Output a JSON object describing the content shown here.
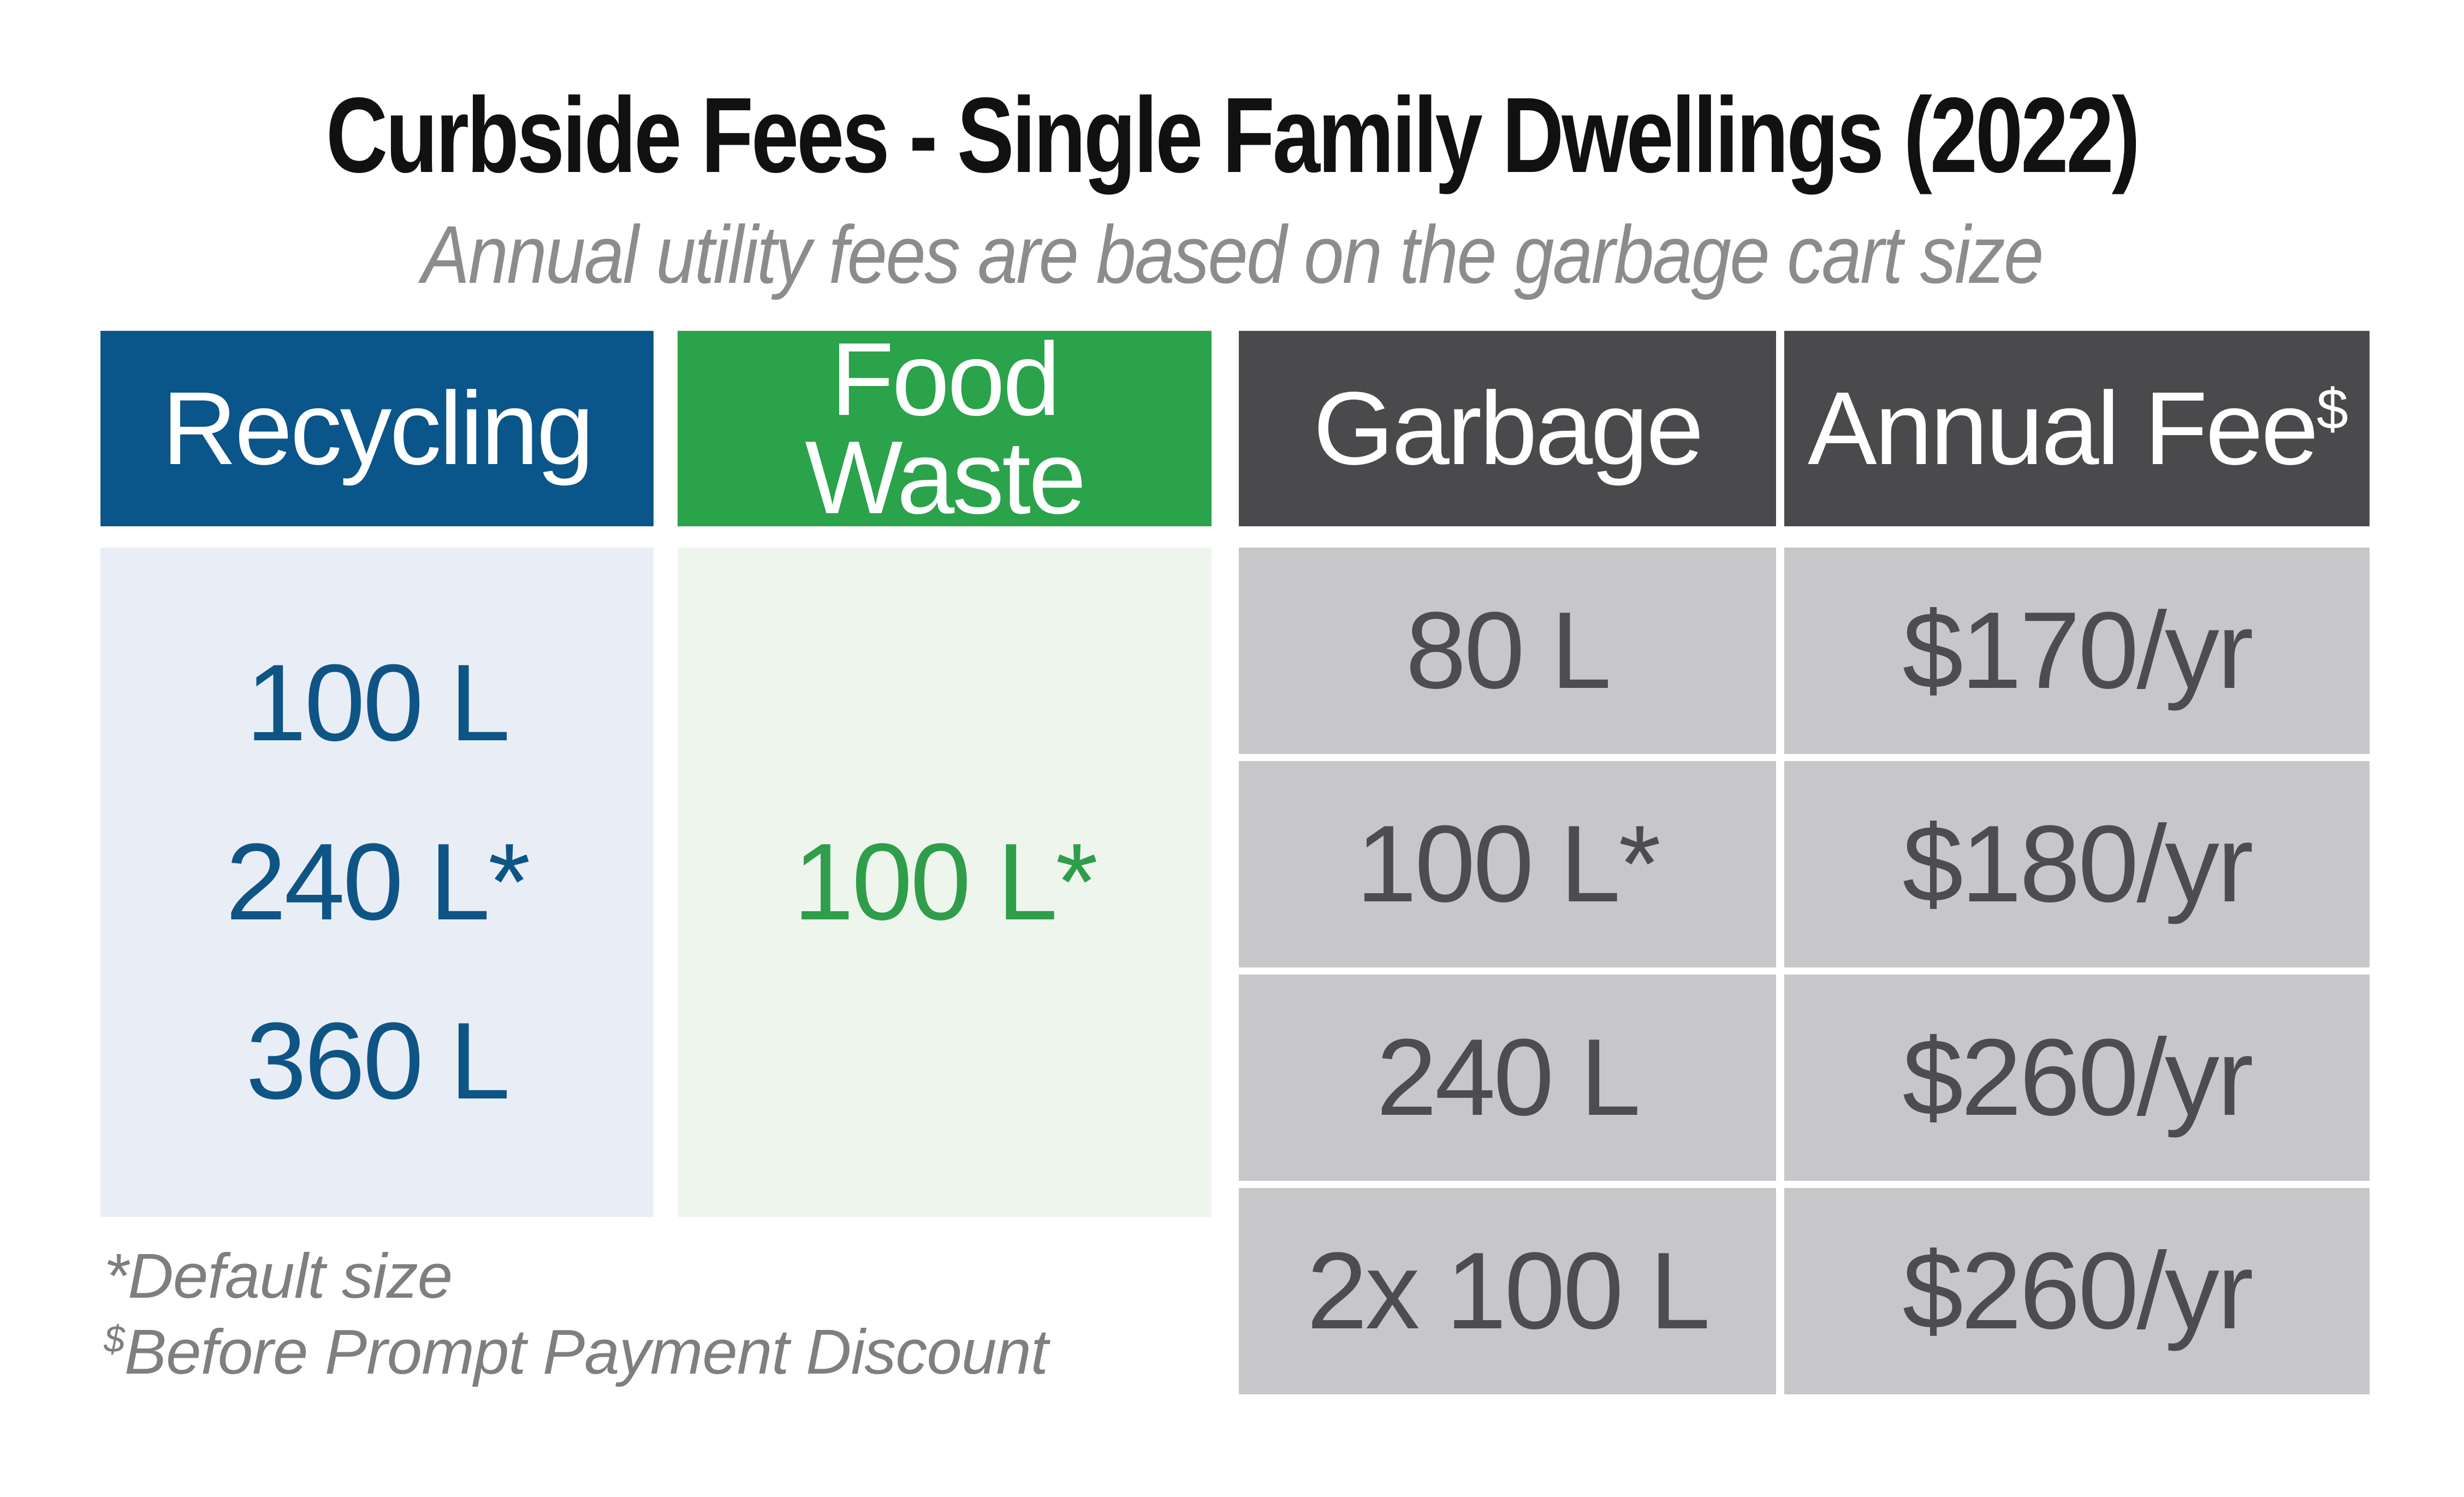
{
  "title": "Curbside Fees - Single Family Dwellings (2022)",
  "subtitle": "Annual utility fees are based on the garbage cart size",
  "columns": [
    {
      "label": "Recycling"
    },
    {
      "label": "Food Waste"
    },
    {
      "label": "Garbage"
    },
    {
      "label": "Annual Fee",
      "sup": "$"
    }
  ],
  "recycling": {
    "sizes": [
      "100 L",
      "240 L*",
      "360 L"
    ]
  },
  "food_waste": {
    "size": "100 L*"
  },
  "rows": [
    {
      "garbage": "80 L",
      "fee": "$170/yr"
    },
    {
      "garbage": "100 L*",
      "fee": "$180/yr"
    },
    {
      "garbage": "240 L",
      "fee": "$260/yr"
    },
    {
      "garbage": "2x 100 L",
      "fee": "$260/yr"
    }
  ],
  "footnotes": [
    {
      "marker": "*",
      "text": "Default size"
    },
    {
      "marker": "$",
      "text": "Before Prompt Payment Discount"
    }
  ],
  "chart_data": {
    "type": "table",
    "title": "Curbside Fees - Single Family Dwellings (2022)",
    "subtitle": "Annual utility fees are based on the garbage cart size",
    "columns": [
      "Recycling",
      "Food Waste",
      "Garbage",
      "Annual Fee$"
    ],
    "recycling_cart_sizes_litres": [
      100,
      240,
      360
    ],
    "recycling_default_size_litres": 240,
    "food_waste_cart_size_litres": 100,
    "garbage_fee_rows": [
      {
        "garbage_cart": "80 L",
        "annual_fee": "$170/yr",
        "fee_dollars_per_year": 170
      },
      {
        "garbage_cart": "100 L*",
        "annual_fee": "$180/yr",
        "fee_dollars_per_year": 180
      },
      {
        "garbage_cart": "240 L",
        "annual_fee": "$260/yr",
        "fee_dollars_per_year": 260
      },
      {
        "garbage_cart": "2x 100 L",
        "annual_fee": "$260/yr",
        "fee_dollars_per_year": 260
      }
    ],
    "footnotes": [
      "*Default size",
      "$Before Prompt Payment Discount"
    ]
  },
  "colors": {
    "recycling_header_bg": "#0a5589",
    "recycling_body_bg": "#e9eef6",
    "recycling_text": "#0e5586",
    "food_waste_header_bg": "#2aa34b",
    "food_waste_body_bg": "#eef5ed",
    "food_waste_text": "#2f9e4a",
    "dark_header_bg": "#4a4a4c",
    "gray_body_bg": "#c7c7c9",
    "gray_text": "#4d4d4f",
    "title_text": "#111111",
    "subtitle_text": "#8c8c8c",
    "footnote_text": "#7f7f7f",
    "header_text": "#ffffff",
    "page_bg": "#ffffff"
  }
}
